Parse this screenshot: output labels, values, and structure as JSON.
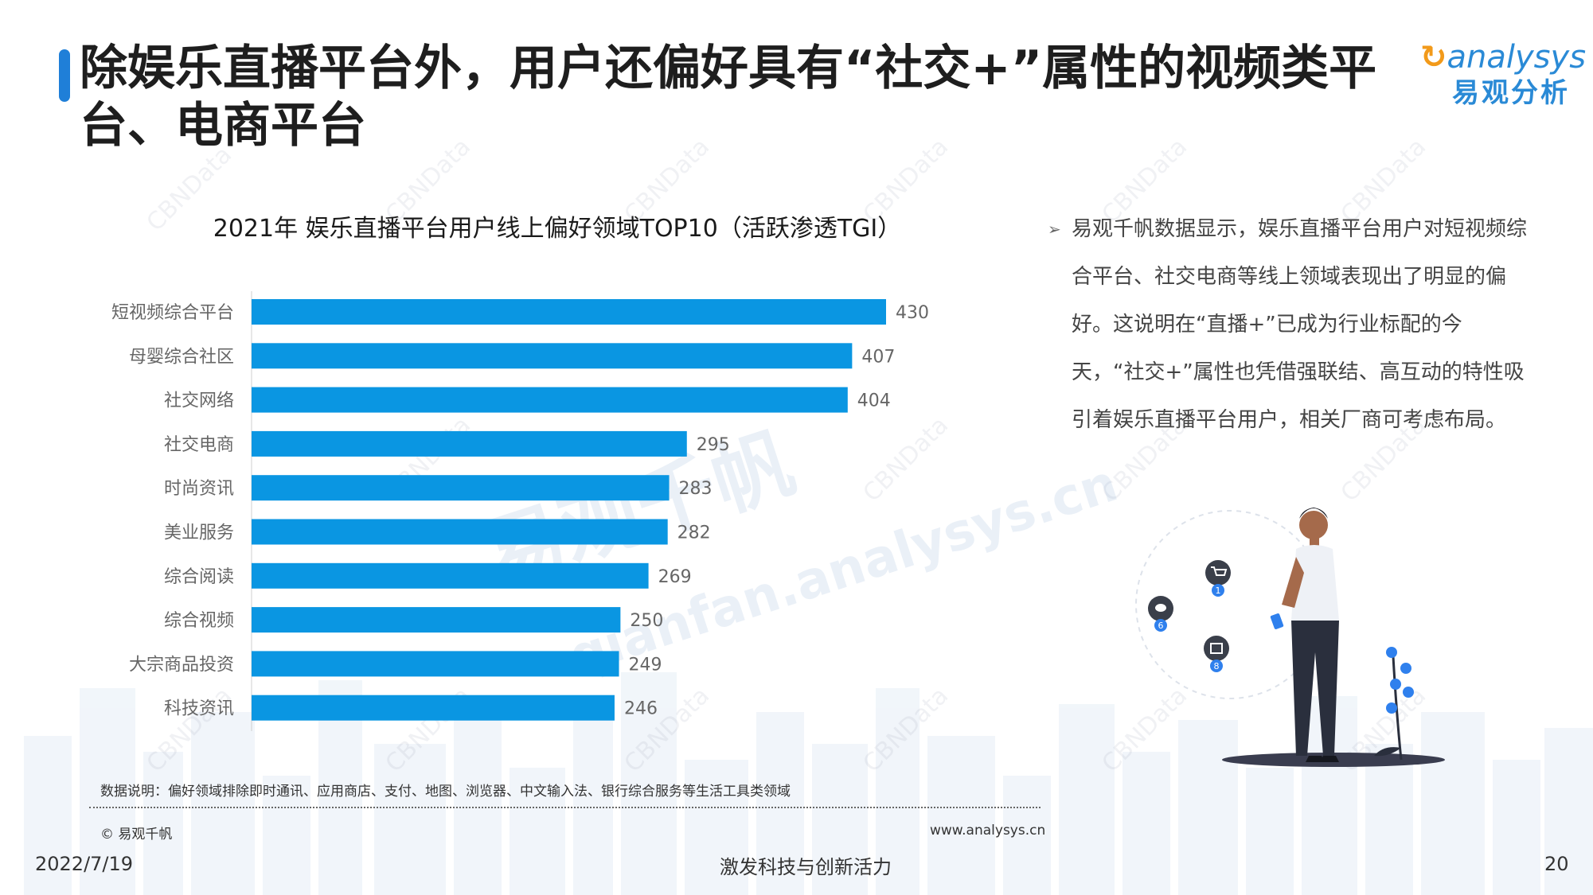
{
  "title": "除娱乐直播平台外，用户还偏好具有“社交+”属性的视频类平台、电商平台",
  "logo": {
    "english": "analysys",
    "chinese": "易观分析"
  },
  "chart_title": "2021年 娱乐直播平台用户线上偏好领域TOP10（活跃渗透TGI）",
  "chart_data": {
    "type": "bar",
    "orientation": "horizontal",
    "title": "2021年 娱乐直播平台用户线上偏好领域TOP10（活跃渗透TGI）",
    "categories": [
      "短视频综合平台",
      "母婴综合社区",
      "社交网络",
      "社交电商",
      "时尚资讯",
      "美业服务",
      "综合阅读",
      "综合视频",
      "大宗商品投资",
      "科技资讯"
    ],
    "values": [
      430,
      407,
      404,
      295,
      283,
      282,
      269,
      250,
      249,
      246
    ],
    "bar_color": "#0a96e2",
    "xlim": [
      0,
      430
    ],
    "grid": false,
    "legend": "none"
  },
  "data_note": "数据说明：偏好领域排除即时通讯、应用商店、支付、地图、浏览器、中文输入法、银行综合服务等生活工具类领域",
  "copyright": "© 易观千帆",
  "website": "www.analysys.cn",
  "insight": "易观千帆数据显示，娱乐直播平台用户对短视频综合平台、社交电商等线上领域表现出了明显的偏好。这说明在“直播+”已成为行业标配的今天，“社交+”属性也凭借强联结、高互动的特性吸引着娱乐直播平台用户，相关厂商可考虑布局。",
  "illustration_badges": [
    "1",
    "6",
    "8"
  ],
  "footer": {
    "date": "2022/7/19",
    "slogan": "激发科技与创新活力",
    "page": "20"
  },
  "colors": {
    "accent": "#1f7fd8",
    "bar": "#0a96e2"
  },
  "watermarks": {
    "small": "CBNData",
    "big": "易观千帆",
    "url": "qianfan.analysys.cn"
  }
}
